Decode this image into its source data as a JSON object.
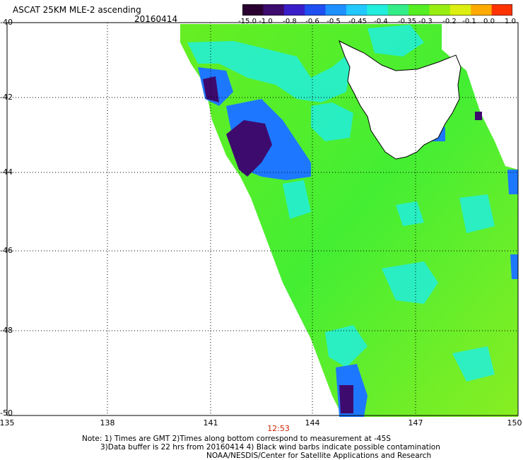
{
  "title": "ASCAT 25KM MLE-2 ascending",
  "date": "20160414",
  "colorbar": {
    "labels": [
      "-15.0",
      "-1.0",
      "-0.8",
      "-0.6",
      "-0.5",
      "-0.45",
      "-0.4",
      "-0.35",
      "-0.3",
      "-0.2",
      "-0.1",
      "0.0",
      "1.0"
    ],
    "colors": [
      "#2a0030",
      "#3d0a6e",
      "#3a1fc8",
      "#1f4ff0",
      "#1e90ff",
      "#22c8ff",
      "#22eedd",
      "#33ee88",
      "#55ee22",
      "#99ee11",
      "#ddee11",
      "#ffaa00",
      "#ff3300"
    ]
  },
  "axes": {
    "lat_labels": [
      "-40",
      "-42",
      "-44",
      "-46",
      "-48",
      "-50"
    ],
    "lon_labels": [
      "135",
      "138",
      "141",
      "144",
      "147",
      "150"
    ],
    "lat_range": [
      -50,
      -40
    ],
    "lon_range": [
      135,
      150
    ]
  },
  "time_label": "12:53",
  "notes": {
    "line1": "Note: 1) Times are GMT 2)Times along bottom correspond to measurement at -45S",
    "line2": "3)Data buffer is 22 hrs from 20160414 4) Black wind barbs indicate possible contamination",
    "line3": "NOAA/NESDIS/Center for Satellite Applications and Research"
  }
}
